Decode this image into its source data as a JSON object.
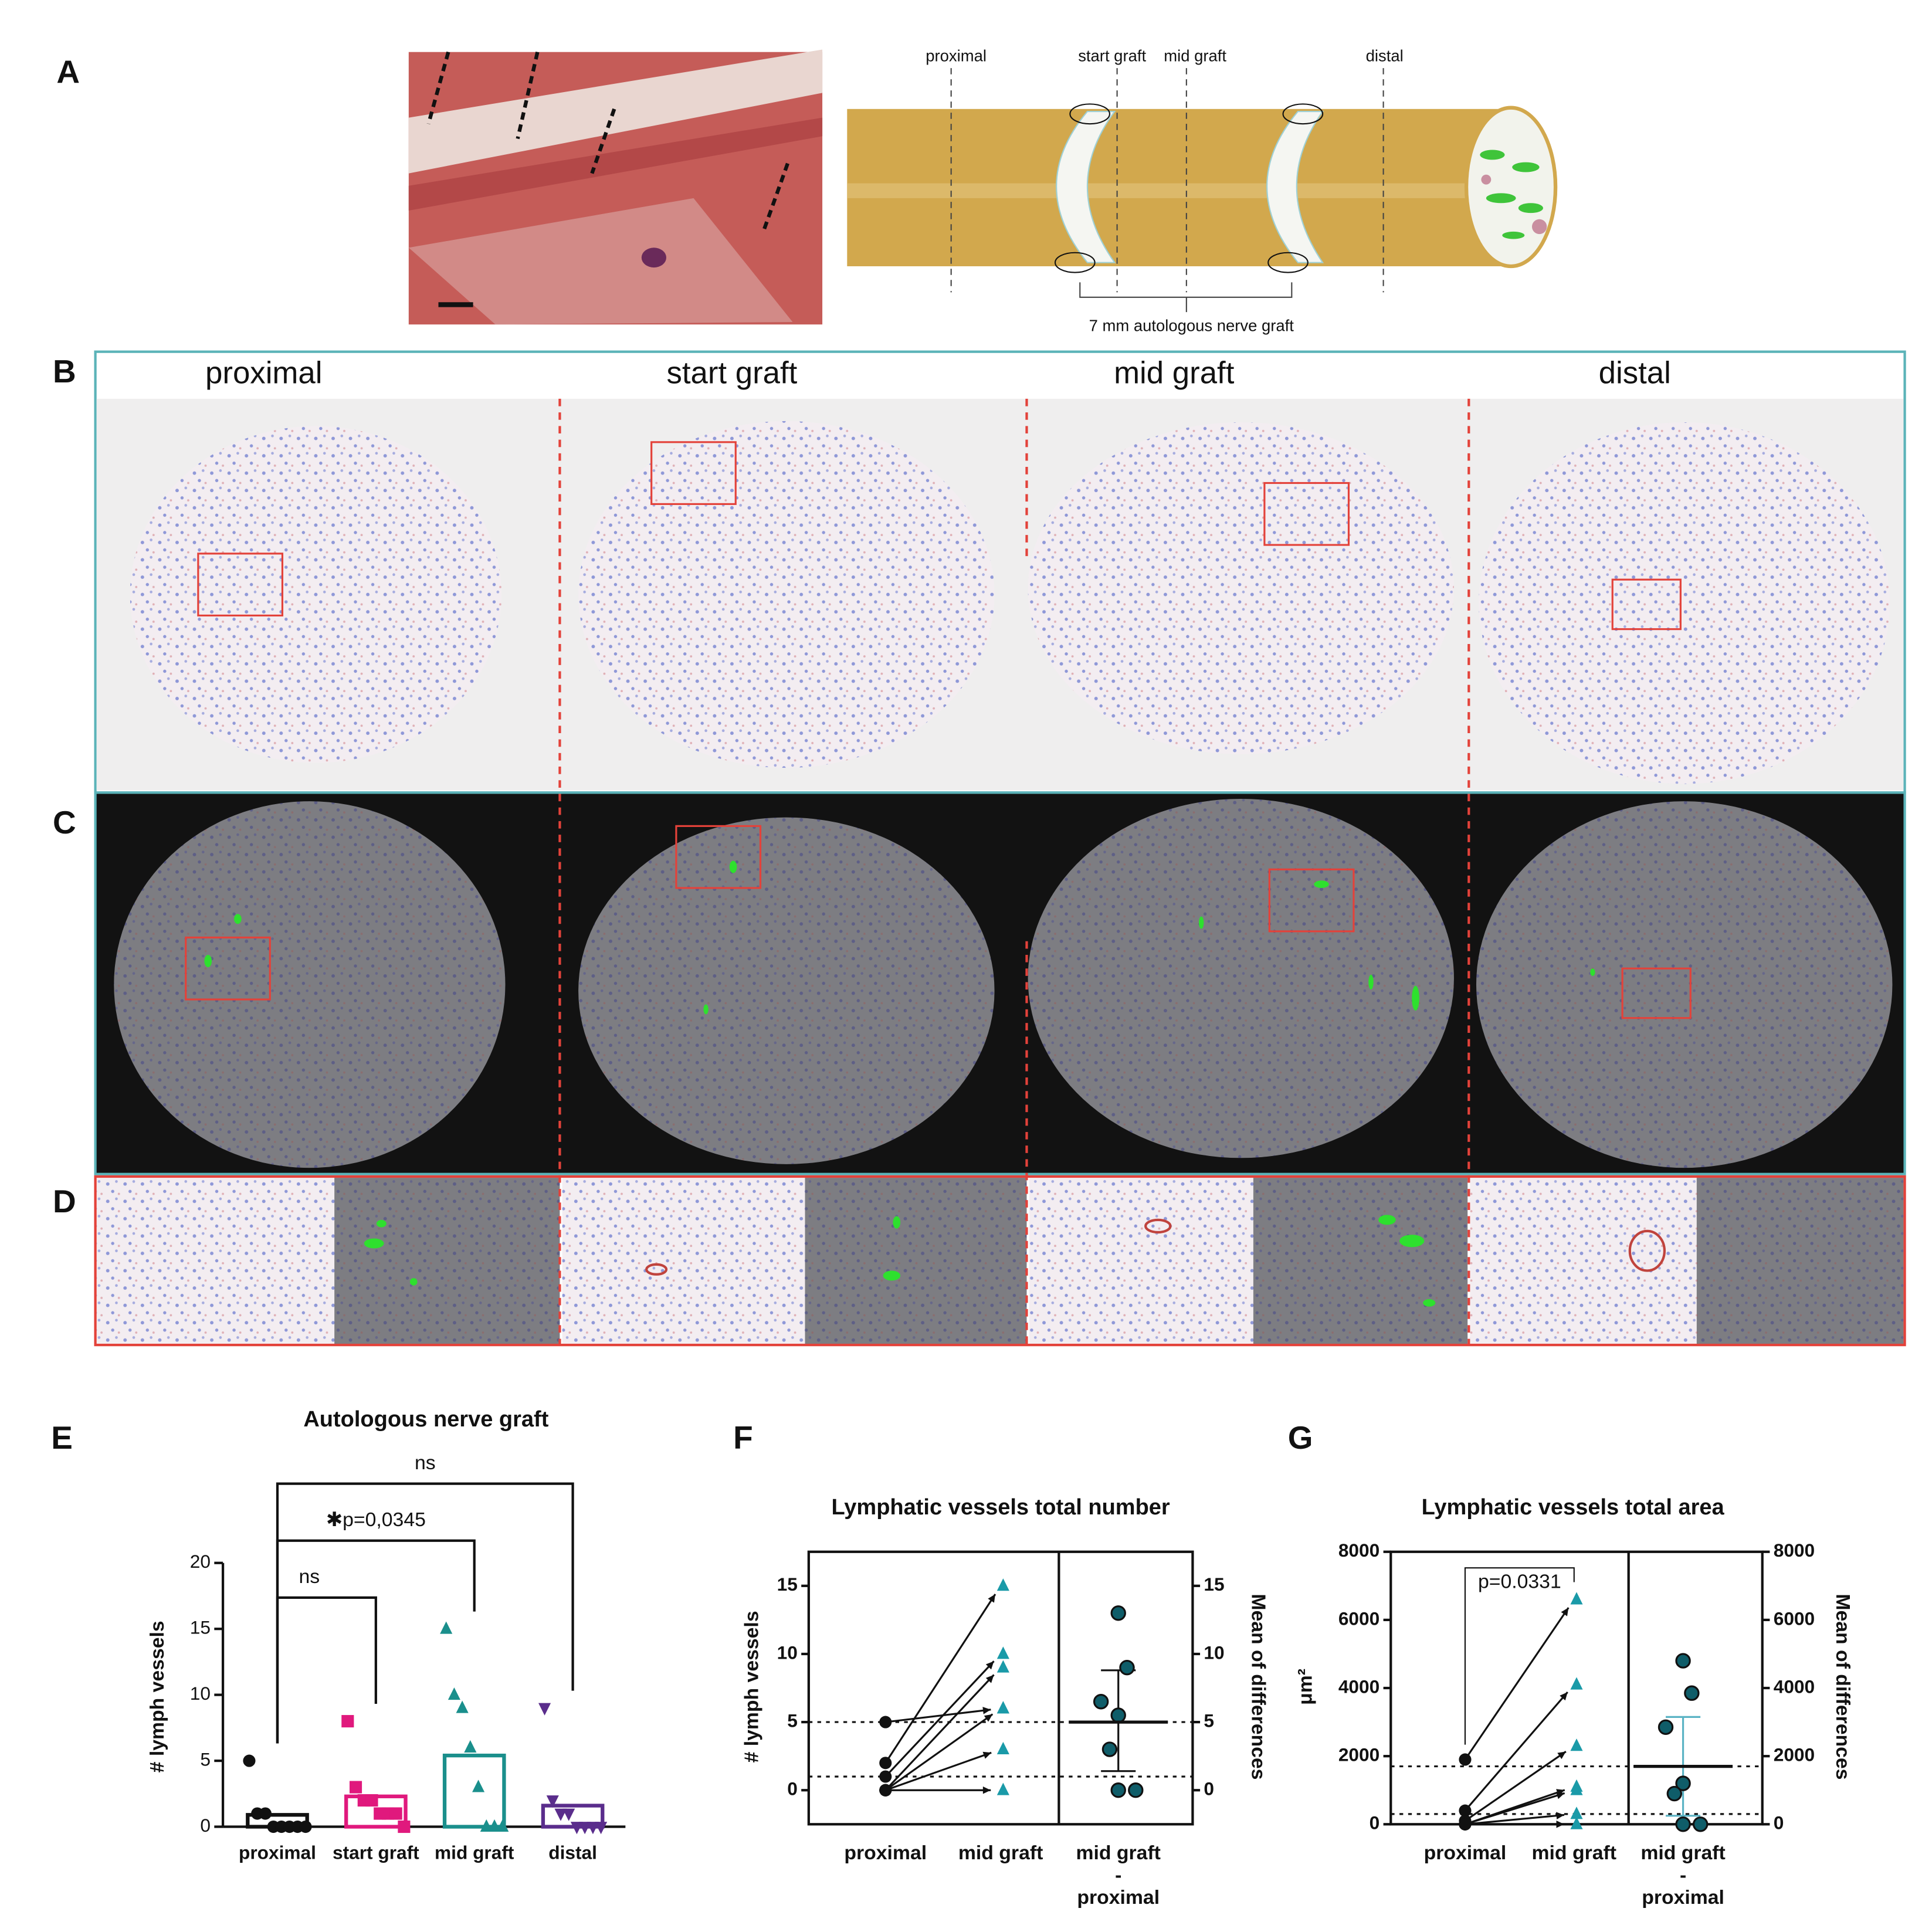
{
  "panel_labels": [
    "A",
    "B",
    "C",
    "D",
    "E",
    "F",
    "G"
  ],
  "diagram": {
    "positions": [
      "proximal",
      "start graft",
      "mid graft",
      "distal"
    ],
    "graft_label": "7 mm autologous nerve graft"
  },
  "sections": [
    "proximal",
    "start graft",
    "mid graft",
    "distal"
  ],
  "chart_data": [
    {
      "type": "bar",
      "title": "Autologous nerve graft",
      "y_label": "# lymph vessels",
      "categories": [
        "proximal",
        "start graft",
        "mid graft",
        "distal"
      ],
      "values": [
        0.9,
        2.3,
        5.4,
        1.6
      ],
      "colors": [
        "#111111",
        "#e0197d",
        "#1a8f8c",
        "#5a2d8c"
      ],
      "markers": [
        "circle",
        "square",
        "triangle",
        "triangle-down"
      ],
      "points": [
        [
          5,
          1,
          1,
          0,
          0,
          0,
          0,
          0
        ],
        [
          8,
          3,
          2,
          2,
          1,
          1,
          1,
          0
        ],
        [
          15,
          10,
          9,
          6,
          3,
          0,
          0,
          0
        ],
        [
          9,
          2,
          1,
          1,
          0,
          0,
          0,
          0
        ]
      ],
      "ylim": [
        0,
        20
      ],
      "yticks": [
        0,
        5,
        10,
        15,
        20
      ],
      "comparisons": [
        {
          "groups": [
            0,
            1
          ],
          "label": "ns"
        },
        {
          "groups": [
            0,
            2
          ],
          "label": "✱p=0,0345"
        },
        {
          "groups": [
            0,
            3
          ],
          "label": "ns"
        }
      ]
    },
    {
      "type": "paired",
      "title": "Lymphatic vessels total number",
      "y_label": "# lymph vessels",
      "y2_label": "Mean of differences",
      "categories": [
        "proximal",
        "mid graft"
      ],
      "difference_label": [
        "mid graft",
        "-",
        "proximal"
      ],
      "values": [
        [
          2,
          1,
          0,
          0,
          5,
          0,
          0
        ],
        [
          15,
          10,
          9,
          6,
          6,
          3,
          0
        ]
      ],
      "colors": [
        "#111111",
        "#1a9aa8"
      ],
      "differences": [
        13,
        9,
        6.5,
        5.5,
        3,
        0,
        0
      ],
      "mean_difference": 5,
      "difference_error": [
        1.4,
        8.8
      ],
      "error_color": "#111111",
      "reference_lines": [
        5,
        1
      ],
      "ylim": [
        -2.5,
        17.5
      ],
      "yticks": [
        0,
        5,
        10,
        15
      ],
      "y2lim": [
        -2.5,
        17.5
      ],
      "y2ticks": [
        0,
        5,
        10,
        15
      ]
    },
    {
      "type": "paired",
      "title": "Lymphatic vessels total area",
      "y_label": "μm²",
      "y2_label": "Mean of differences",
      "categories": [
        "proximal",
        "mid graft"
      ],
      "difference_label": [
        "mid graft",
        "-",
        "proximal"
      ],
      "values": [
        [
          1900,
          400,
          100,
          0,
          0,
          0,
          0
        ],
        [
          6600,
          4100,
          2300,
          1100,
          1000,
          300,
          0
        ]
      ],
      "colors": [
        "#111111",
        "#1a9aa8"
      ],
      "differences": [
        4800,
        3850,
        2850,
        1200,
        900,
        0,
        0
      ],
      "mean_difference": 1700,
      "difference_error": [
        250,
        3150
      ],
      "error_color": "#5bb3c4",
      "reference_lines": [
        1700,
        300
      ],
      "comparisons": [
        {
          "groups": [
            0,
            1
          ],
          "label": "p=0.0331"
        }
      ],
      "ylim": [
        0,
        8000
      ],
      "yticks": [
        0,
        2000,
        4000,
        6000,
        8000
      ],
      "y2lim": [
        0,
        8000
      ],
      "y2ticks": [
        0,
        2000,
        4000,
        6000,
        8000
      ]
    }
  ]
}
